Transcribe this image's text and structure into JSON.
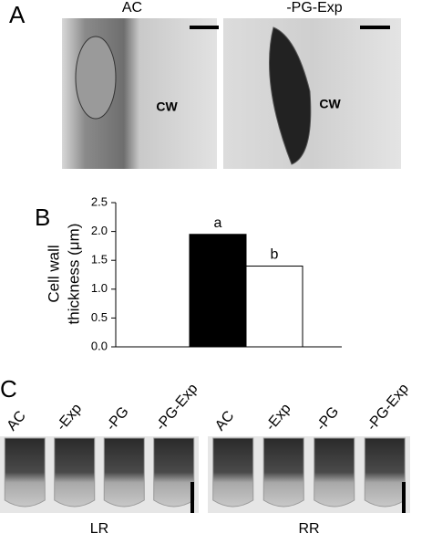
{
  "panels": {
    "A": {
      "label": "A",
      "images": [
        {
          "title": "AC",
          "annotation": "CW"
        },
        {
          "title": "-PG-Exp",
          "annotation": "CW"
        }
      ]
    },
    "B": {
      "label": "B"
    },
    "C": {
      "label": "C",
      "groups": [
        {
          "name": "LR",
          "tubes": [
            "AC",
            "-Exp",
            "-PG",
            "-PG-Exp"
          ]
        },
        {
          "name": "RR",
          "tubes": [
            "AC",
            "-Exp",
            "-PG",
            "-PG-Exp"
          ]
        }
      ]
    }
  },
  "chart_data": {
    "type": "bar",
    "ylabel": [
      "Cell wall",
      "thickness (μm)"
    ],
    "categories": [
      null,
      null
    ],
    "values": [
      1.95,
      1.4
    ],
    "colors": [
      "#000000",
      "#ffffff"
    ],
    "annotations": [
      "a",
      "b"
    ],
    "ylim": [
      0,
      2.5
    ],
    "yticks": [
      {
        "value": 0,
        "label": "0.0"
      },
      0.5,
      {
        "value": 1,
        "label": "1.0"
      },
      1.5,
      {
        "value": 2,
        "label": "2.0"
      },
      2.5
    ]
  }
}
